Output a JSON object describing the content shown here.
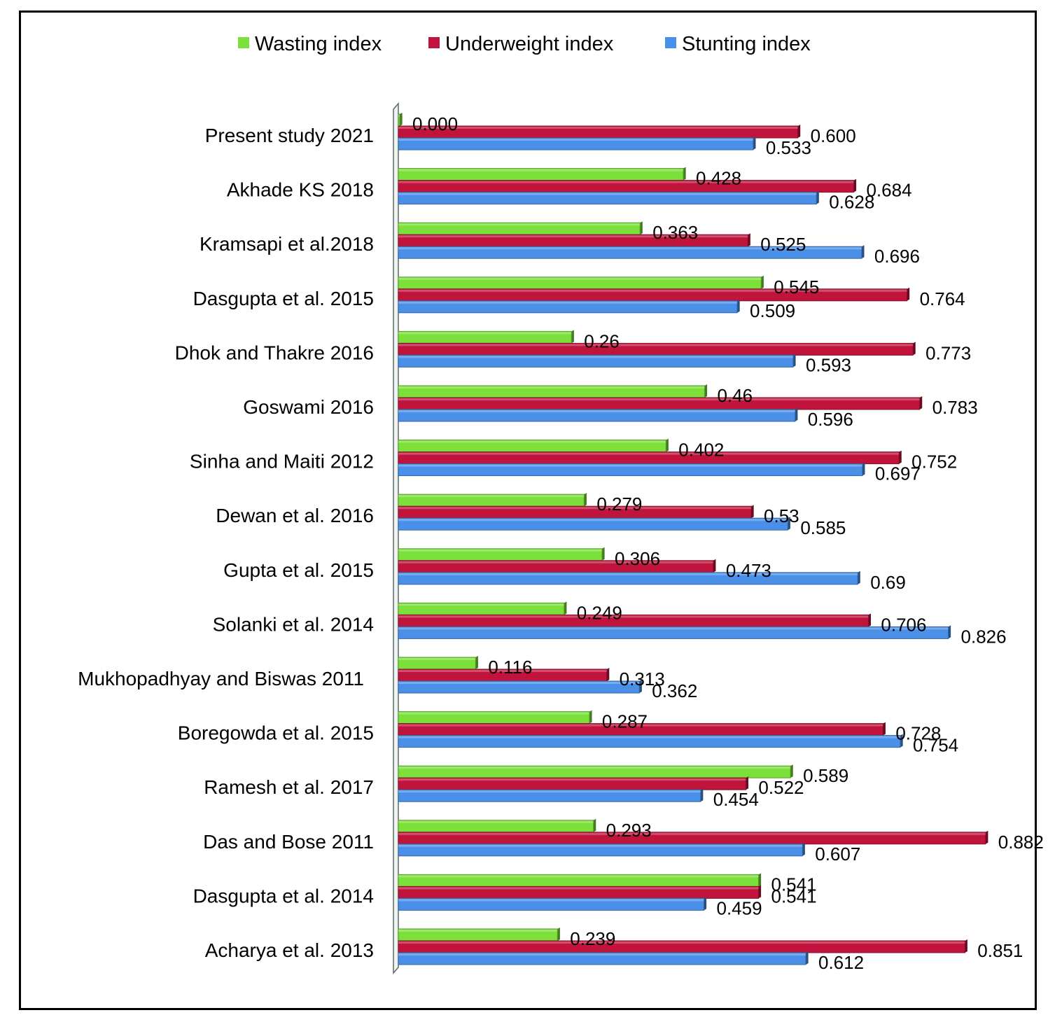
{
  "chart_data": {
    "type": "bar",
    "orientation": "horizontal",
    "categories": [
      "Present study 2021",
      "Akhade KS 2018",
      "Kramsapi et al.2018",
      "Dasgupta et al. 2015",
      "Dhok and Thakre 2016",
      "Goswami 2016",
      "Sinha and Maiti 2012",
      "Dewan et al. 2016",
      "Gupta et al. 2015",
      "Solanki et al. 2014",
      "Mukhopadhyay and Biswas 2011",
      "Boregowda et al. 2015",
      "Ramesh et al. 2017",
      "Das and Bose 2011",
      "Dasgupta et al. 2014",
      "Acharya et al. 2013"
    ],
    "series": [
      {
        "name": "Wasting index",
        "color": "#7be03a",
        "values": [
          0.0,
          0.428,
          0.363,
          0.545,
          0.26,
          0.46,
          0.402,
          0.279,
          0.306,
          0.249,
          0.116,
          0.287,
          0.589,
          0.293,
          0.541,
          0.239
        ],
        "labels": [
          "0.000",
          "0.428",
          "0.363",
          "0.545",
          "0.26",
          "0.46",
          "0.402",
          "0.279",
          "0.306",
          "0.249",
          "0.116",
          "0.287",
          "0.589",
          "0.293",
          "0.541",
          "0.239"
        ]
      },
      {
        "name": "Underweight index",
        "color": "#c0143c",
        "values": [
          0.6,
          0.684,
          0.525,
          0.764,
          0.773,
          0.783,
          0.752,
          0.53,
          0.473,
          0.706,
          0.313,
          0.728,
          0.522,
          0.882,
          0.541,
          0.851
        ],
        "labels": [
          "0.600",
          "0.684",
          "0.525",
          "0.764",
          "0.773",
          "0.783",
          "0.752",
          "0.53",
          "0.473",
          "0.706",
          "0.313",
          "0.728",
          "0.522",
          "0.882",
          "0.541",
          "0.851"
        ]
      },
      {
        "name": "Stunting index",
        "color": "#4a90e8",
        "values": [
          0.533,
          0.628,
          0.696,
          0.509,
          0.593,
          0.596,
          0.697,
          0.585,
          0.69,
          0.826,
          0.362,
          0.754,
          0.454,
          0.607,
          0.459,
          0.612
        ],
        "labels": [
          "0.533",
          "0.628",
          "0.696",
          "0.509",
          "0.593",
          "0.596",
          "0.697",
          "0.585",
          "0.69",
          "0.826",
          "0.362",
          "0.754",
          "0.454",
          "0.607",
          "0.459",
          "0.612"
        ]
      }
    ],
    "legend_order": [
      "Wasting index",
      "Underweight index",
      "Stunting index"
    ],
    "legend_position": "top",
    "xlim": [
      0,
      0.9
    ],
    "grid": false,
    "title": "",
    "xlabel": "",
    "ylabel": ""
  }
}
